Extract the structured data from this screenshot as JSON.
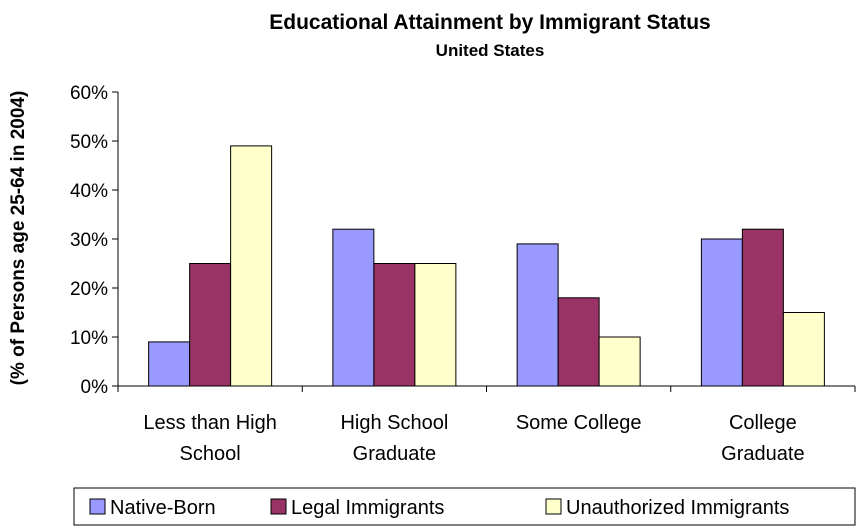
{
  "chart_data": {
    "type": "bar",
    "title": "Educational Attainment by Immigrant Status",
    "subtitle": "United States",
    "ylabel": "(% of Persons age 25-64 in 2004)",
    "xlabel": "",
    "ylim": [
      0,
      60
    ],
    "yticks": [
      "0%",
      "10%",
      "20%",
      "30%",
      "40%",
      "50%",
      "60%"
    ],
    "ytick_values": [
      0,
      10,
      20,
      30,
      40,
      50,
      60
    ],
    "categories": [
      [
        "Less than High",
        "School"
      ],
      [
        "High School",
        "Graduate"
      ],
      [
        "Some College"
      ],
      [
        "College",
        "Graduate"
      ]
    ],
    "series": [
      {
        "name": "Native-Born",
        "color": "#9999ff",
        "values": [
          9,
          32,
          29,
          30
        ]
      },
      {
        "name": "Legal Immigrants",
        "color": "#993366",
        "values": [
          25,
          25,
          18,
          32
        ]
      },
      {
        "name": "Unauthorized Immigrants",
        "color": "#ffffcc",
        "values": [
          49,
          25,
          10,
          15
        ]
      }
    ],
    "grid": false,
    "legend_position": "bottom"
  }
}
